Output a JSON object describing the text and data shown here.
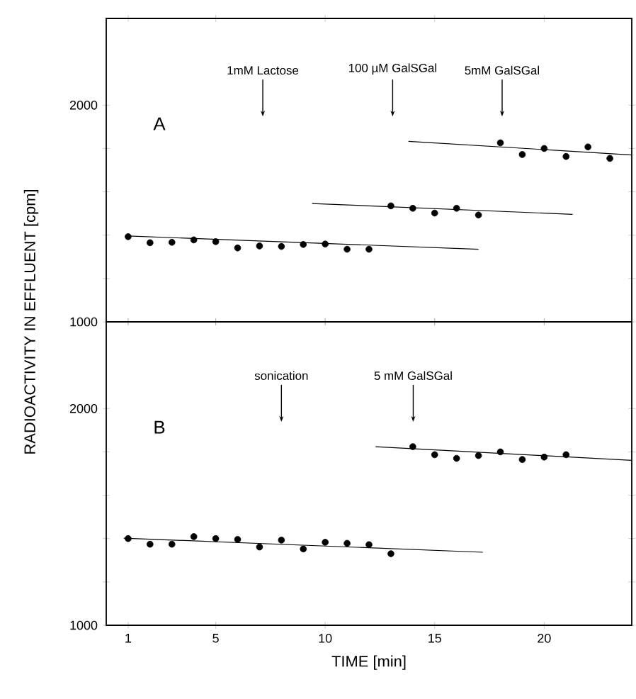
{
  "chart_data": [
    {
      "type": "scatter",
      "ylabel": "RADIOACTIVITY IN EFFLUENT [cpm]",
      "xlim": [
        0,
        24
      ],
      "ylim": [
        1000,
        2400
      ],
      "xticks": [
        1,
        5,
        10,
        15,
        20
      ],
      "yticks": [
        1000,
        {
          "value": 1200,
          "label": null
        },
        {
          "value": 1400,
          "label": null
        },
        {
          "value": 1600,
          "label": null
        },
        {
          "value": 1800,
          "label": null
        },
        2000
      ],
      "tick_labels": "y",
      "annotations": [
        "A",
        {
          "text": "1mM Lactose",
          "x": 7.15,
          "y": 1948
        },
        {
          "text": "100 µM GalSGal",
          "x": 13.08,
          "y": 1948
        },
        {
          "text": "5mM GalSGal",
          "x": 18.08,
          "y": 1948
        }
      ],
      "series": [
        {
          "type": "scatter",
          "marker": "circle",
          "color": "#000000",
          "x": [
            1,
            2,
            3,
            4,
            5,
            6,
            7,
            8,
            9,
            10,
            11,
            12
          ],
          "values": [
            1393,
            1365,
            1367,
            1378,
            1370,
            1341,
            1350,
            1348,
            1357,
            1359,
            1335,
            1335
          ]
        },
        {
          "type": "line",
          "marker": "none",
          "color": "#000000",
          "x": [
            1,
            17
          ],
          "values": [
            1396,
            1335
          ]
        },
        {
          "type": "scatter",
          "marker": "circle",
          "color": "#000000",
          "x": [
            13,
            14,
            15,
            16,
            17
          ],
          "values": [
            1535,
            1524,
            1502,
            1524,
            1493
          ]
        },
        {
          "type": "line",
          "marker": "none",
          "color": "#000000",
          "x": [
            9.4,
            21.3
          ],
          "values": [
            1546,
            1496
          ]
        },
        {
          "type": "scatter",
          "marker": "circle",
          "color": "#000000",
          "x": [
            18,
            19,
            20,
            21,
            22,
            23
          ],
          "values": [
            1826,
            1772,
            1800,
            1763,
            1807,
            1754
          ]
        },
        {
          "type": "line",
          "marker": "none",
          "color": "#000000",
          "x": [
            13.8,
            24
          ],
          "values": [
            1833,
            1770
          ]
        }
      ]
    },
    {
      "type": "scatter",
      "xlabel": "TIME [min]",
      "xlim": [
        0,
        24
      ],
      "ylim": [
        1000,
        2400
      ],
      "xticks": [
        1,
        5,
        10,
        15,
        20
      ],
      "yticks": [
        1000,
        {
          "value": 1200,
          "label": null
        },
        {
          "value": 1400,
          "label": null
        },
        {
          "value": 1600,
          "label": null
        },
        {
          "value": 1800,
          "label": null
        },
        2000
      ],
      "annotations": [
        "B",
        {
          "text": "sonication",
          "x": 8.0,
          "y": 1939
        },
        {
          "text": "5 mM GalSGal",
          "x": 14.02,
          "y": 1939
        }
      ],
      "series": [
        {
          "type": "scatter",
          "marker": "circle",
          "color": "#000000",
          "x": [
            1,
            2,
            3,
            4,
            5,
            6,
            7,
            8,
            9,
            10,
            11,
            12,
            13
          ],
          "values": [
            1400,
            1374,
            1374,
            1409,
            1400,
            1396,
            1361,
            1393,
            1352,
            1383,
            1378,
            1372,
            1330
          ]
        },
        {
          "type": "line",
          "marker": "none",
          "color": "#000000",
          "x": [
            0.8,
            17.2
          ],
          "values": [
            1402,
            1337
          ]
        },
        {
          "type": "scatter",
          "marker": "circle",
          "color": "#000000",
          "x": [
            14,
            15,
            16,
            17,
            18,
            19,
            20,
            21
          ],
          "values": [
            1824,
            1787,
            1770,
            1783,
            1800,
            1765,
            1776,
            1787
          ]
        },
        {
          "type": "line",
          "marker": "none",
          "color": "#000000",
          "x": [
            12.3,
            24
          ],
          "values": [
            1824,
            1761
          ]
        }
      ]
    }
  ]
}
